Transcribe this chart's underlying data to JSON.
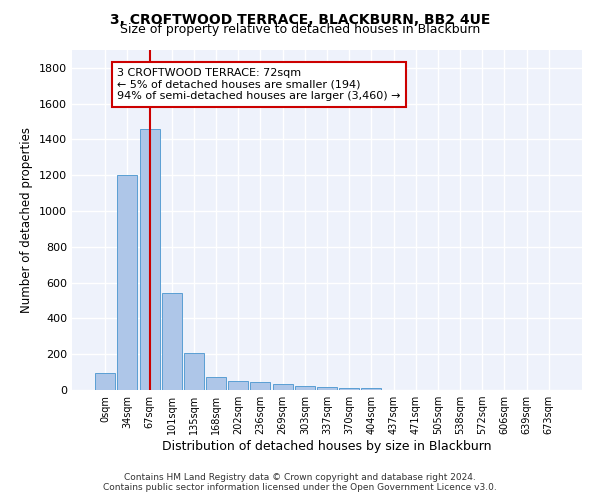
{
  "title": "3, CROFTWOOD TERRACE, BLACKBURN, BB2 4UE",
  "subtitle": "Size of property relative to detached houses in Blackburn",
  "xlabel": "Distribution of detached houses by size in Blackburn",
  "ylabel": "Number of detached properties",
  "bar_labels": [
    "0sqm",
    "34sqm",
    "67sqm",
    "101sqm",
    "135sqm",
    "168sqm",
    "202sqm",
    "236sqm",
    "269sqm",
    "303sqm",
    "337sqm",
    "370sqm",
    "404sqm",
    "437sqm",
    "471sqm",
    "505sqm",
    "538sqm",
    "572sqm",
    "606sqm",
    "639sqm",
    "673sqm"
  ],
  "bar_values": [
    95,
    1200,
    1460,
    540,
    205,
    75,
    50,
    45,
    32,
    25,
    17,
    12,
    10,
    0,
    0,
    0,
    0,
    0,
    0,
    0,
    0
  ],
  "bar_color": "#aec6e8",
  "bar_edge_color": "#5a9fd4",
  "property_line_x": 2.0,
  "annotation_text": "3 CROFTWOOD TERRACE: 72sqm\n← 5% of detached houses are smaller (194)\n94% of semi-detached houses are larger (3,460) →",
  "annotation_box_color": "#ffffff",
  "annotation_box_edge_color": "#cc0000",
  "vline_color": "#cc0000",
  "ylim": [
    0,
    1900
  ],
  "yticks": [
    0,
    200,
    400,
    600,
    800,
    1000,
    1200,
    1400,
    1600,
    1800
  ],
  "bg_color": "#eef2fb",
  "footer_line1": "Contains HM Land Registry data © Crown copyright and database right 2024.",
  "footer_line2": "Contains public sector information licensed under the Open Government Licence v3.0.",
  "title_fontsize": 10,
  "subtitle_fontsize": 9,
  "xlabel_fontsize": 9,
  "ylabel_fontsize": 8.5
}
